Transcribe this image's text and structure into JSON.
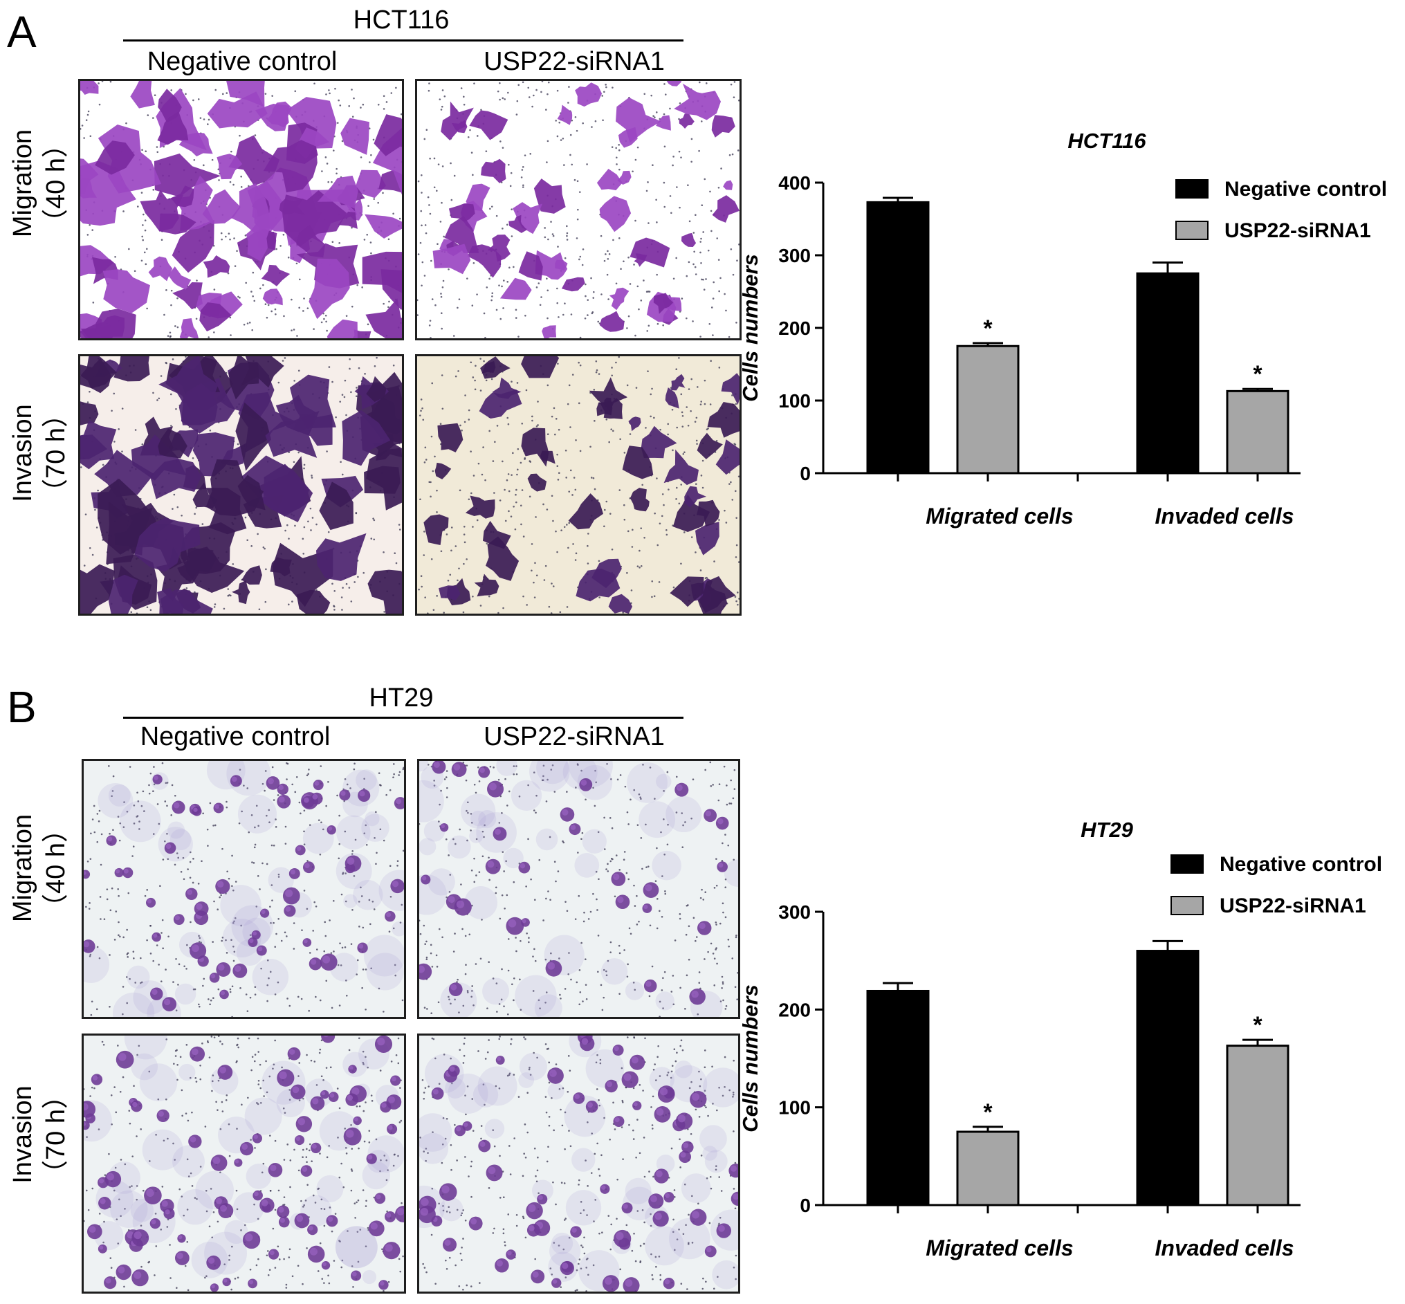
{
  "panels": [
    {
      "letter": "A",
      "cell_line": "HCT116",
      "conditions": [
        "Negative control",
        "USP22-siRNA1"
      ],
      "rows": [
        {
          "label": "Migration",
          "time": "（40 h）"
        },
        {
          "label": "Invasion",
          "time": "（70 h）"
        }
      ]
    },
    {
      "letter": "B",
      "cell_line": "HT29",
      "conditions": [
        "Negative control",
        "USP22-siRNA1"
      ],
      "rows": [
        {
          "label": "Migration",
          "time": "（40 h）"
        },
        {
          "label": "Invasion",
          "time": "（70 h）"
        }
      ]
    }
  ],
  "chart_data": [
    {
      "type": "bar",
      "title": "HCT116",
      "ylabel": "Cells numbers",
      "xlabel": "",
      "categories": [
        "Migrated cells",
        "Invaded cells"
      ],
      "ylim": [
        0,
        400
      ],
      "yticks": [
        0,
        100,
        200,
        300,
        400
      ],
      "legend_position": "top-right",
      "series": [
        {
          "name": "Negative control",
          "color": "#000000",
          "values": [
            373,
            275
          ],
          "errors": [
            6,
            15
          ],
          "significance": [
            "",
            ""
          ]
        },
        {
          "name": "USP22-siRNA1",
          "color": "#a6a6a6",
          "values": [
            175,
            113
          ],
          "errors": [
            4,
            3
          ],
          "significance": [
            "*",
            "*"
          ]
        }
      ]
    },
    {
      "type": "bar",
      "title": "HT29",
      "ylabel": "Cells numbers",
      "xlabel": "",
      "categories": [
        "Migrated cells",
        "Invaded cells"
      ],
      "ylim": [
        0,
        300
      ],
      "yticks": [
        0,
        100,
        200,
        300
      ],
      "legend_position": "top-right",
      "series": [
        {
          "name": "Negative control",
          "color": "#000000",
          "values": [
            219,
            260
          ],
          "errors": [
            8,
            10
          ],
          "significance": [
            "",
            ""
          ]
        },
        {
          "name": "USP22-siRNA1",
          "color": "#a6a6a6",
          "values": [
            75,
            163
          ],
          "errors": [
            5,
            6
          ],
          "significance": [
            "*",
            "*"
          ]
        }
      ]
    }
  ]
}
